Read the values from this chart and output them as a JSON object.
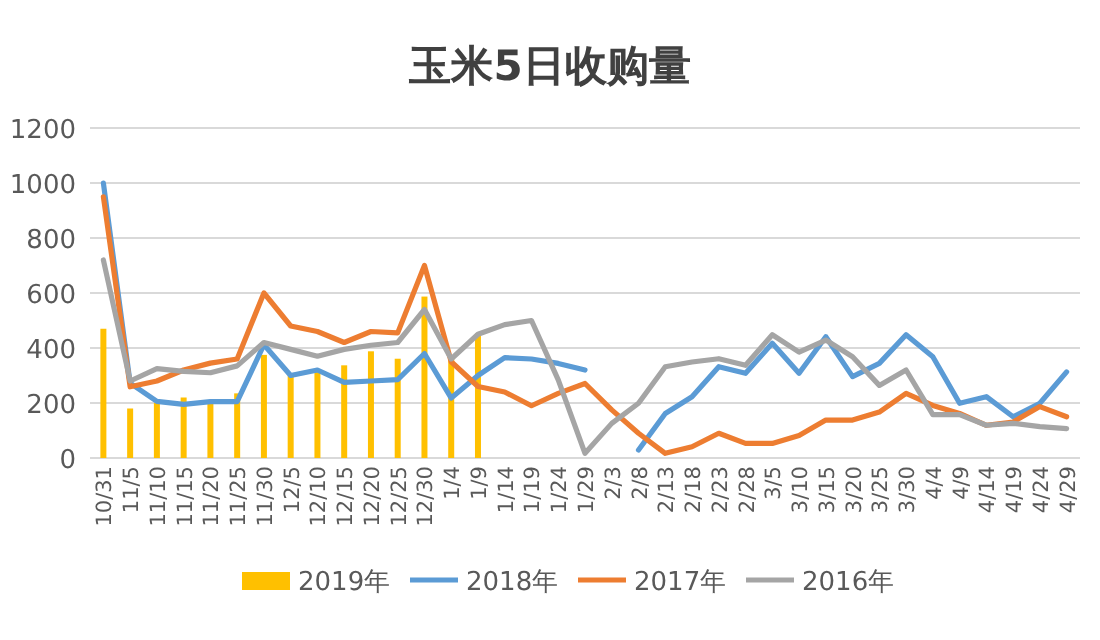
{
  "chart_data": {
    "type": "line",
    "title": "玉米5日收购量",
    "categories": [
      "10/31",
      "11/5",
      "11/10",
      "11/15",
      "11/20",
      "11/25",
      "11/30",
      "12/5",
      "12/10",
      "12/15",
      "12/20",
      "12/25",
      "12/30",
      "1/4",
      "1/9",
      "1/14",
      "1/19",
      "1/24",
      "1/29",
      "2/3",
      "2/8",
      "2/13",
      "2/18",
      "2/23",
      "2/28",
      "3/5",
      "3/10",
      "3/15",
      "3/20",
      "3/25",
      "3/30",
      "4/4",
      "4/9",
      "4/14",
      "4/19",
      "4/24",
      "4/29"
    ],
    "series": [
      {
        "name": "2019年",
        "type": "bar",
        "color": "#ffc000",
        "values": [
          470,
          180,
          200,
          220,
          200,
          235,
          375,
          300,
          320,
          337,
          388,
          361,
          587,
          368,
          453,
          null,
          null,
          null,
          null,
          null,
          null,
          null,
          null,
          null,
          null,
          null,
          null,
          null,
          null,
          null,
          null,
          null,
          null,
          null,
          null,
          null,
          null
        ]
      },
      {
        "name": "2018年",
        "color": "#5b9bd5",
        "values": [
          1000,
          272,
          206,
          195,
          205,
          205,
          412,
          300,
          320,
          275,
          280,
          285,
          380,
          218,
          300,
          365,
          360,
          344,
          320,
          null,
          29,
          162,
          223,
          332,
          308,
          417,
          308,
          441,
          296,
          344,
          448,
          368,
          199,
          223,
          150,
          199,
          313
        ]
      },
      {
        "name": "2017年",
        "color": "#ed7d31",
        "values": [
          950,
          259,
          280,
          320,
          345,
          360,
          600,
          480,
          460,
          420,
          460,
          455,
          700,
          350,
          260,
          240,
          190,
          235,
          271,
          175,
          90,
          17,
          41,
          90,
          53,
          53,
          82,
          138,
          138,
          167,
          235,
          191,
          162,
          119,
          131,
          187,
          150
        ]
      },
      {
        "name": "2016年",
        "color": "#a5a5a5",
        "values": [
          720,
          280,
          325,
          315,
          310,
          335,
          420,
          395,
          370,
          395,
          410,
          420,
          540,
          360,
          450,
          485,
          500,
          284,
          17,
          126,
          199,
          332,
          349,
          361,
          337,
          448,
          385,
          429,
          368,
          264,
          320,
          158,
          158,
          119,
          126,
          114,
          107
        ]
      }
    ],
    "ylim": [
      0,
      1200
    ],
    "yticks": [
      0,
      200,
      400,
      600,
      800,
      1000,
      1200
    ],
    "grid": "y",
    "legend": "bottom",
    "line_style": "solid",
    "marker": "none"
  }
}
